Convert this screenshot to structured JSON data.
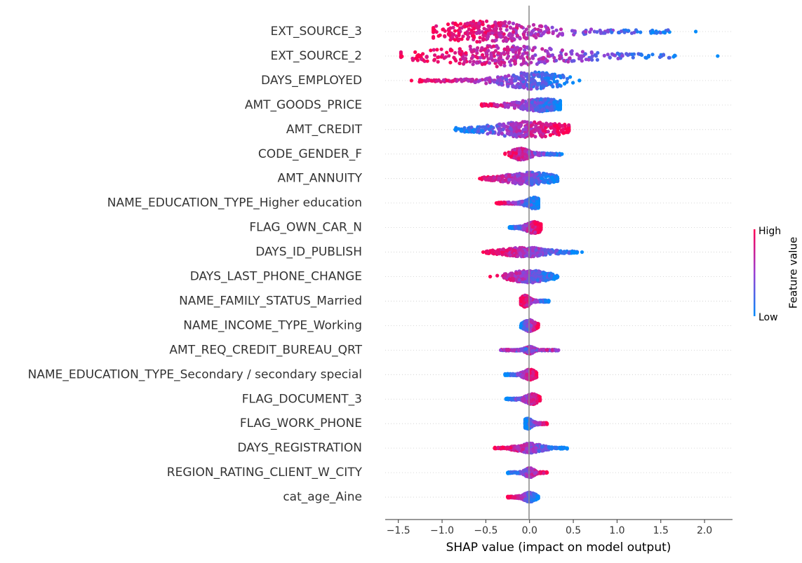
{
  "chart_data": {
    "type": "scatter",
    "subtype": "shap-beeswarm",
    "xlabel": "SHAP value (impact on model output)",
    "xlim": [
      -1.65,
      2.32
    ],
    "xticks": [
      -1.5,
      -1.0,
      -0.5,
      0.0,
      0.5,
      1.0,
      1.5,
      2.0
    ],
    "xtick_labels": [
      "−1.5",
      "−1.0",
      "−0.5",
      "0.0",
      "0.5",
      "1.0",
      "1.5",
      "2.0"
    ],
    "zero_line": 0.0,
    "grid": false,
    "colorbar": {
      "label": "Feature value",
      "high_label": "High",
      "low_label": "Low",
      "colors": [
        "#008bfb",
        "#ff0052"
      ]
    },
    "features": [
      {
        "name": "EXT_SOURCE_3",
        "min": -1.1,
        "max": 1.9,
        "peak": -0.5,
        "spread": 0.35,
        "bulk_min": -0.95,
        "bulk_max": 1.6,
        "width": 1.0,
        "gradient": "high_left"
      },
      {
        "name": "EXT_SOURCE_2",
        "min": -1.47,
        "max": 2.15,
        "peak": -0.35,
        "spread": 0.45,
        "bulk_min": -1.35,
        "bulk_max": 1.7,
        "width": 1.0,
        "gradient": "high_left"
      },
      {
        "name": "DAYS_EMPLOYED",
        "min": -1.35,
        "max": 0.57,
        "peak": 0.05,
        "spread": 0.2,
        "bulk_min": -1.3,
        "bulk_max": 0.35,
        "width": 0.8,
        "gradient": "high_left"
      },
      {
        "name": "AMT_GOODS_PRICE",
        "min": -0.55,
        "max": 0.35,
        "peak": 0.15,
        "spread": 0.15,
        "bulk_min": -0.55,
        "bulk_max": 0.33,
        "width": 0.6,
        "gradient": "high_left"
      },
      {
        "name": "AMT_CREDIT",
        "min": -0.85,
        "max": 0.45,
        "peak": 0.0,
        "spread": 0.25,
        "bulk_min": -0.85,
        "bulk_max": 0.45,
        "width": 0.75,
        "gradient": "low_left"
      },
      {
        "name": "CODE_GENDER_F",
        "min": -0.28,
        "max": 0.37,
        "peak": -0.1,
        "spread": 0.06,
        "bulk_min": -0.2,
        "bulk_max": 0.35,
        "width": 0.55,
        "gradient": "high_left"
      },
      {
        "name": "AMT_ANNUITY",
        "min": -0.57,
        "max": 0.32,
        "peak": 0.0,
        "spread": 0.15,
        "bulk_min": -0.55,
        "bulk_max": 0.32,
        "width": 0.6,
        "gradient": "high_left"
      },
      {
        "name": "NAME_EDUCATION_TYPE_Higher education",
        "min": -0.38,
        "max": 0.1,
        "peak": 0.05,
        "spread": 0.05,
        "bulk_min": -0.38,
        "bulk_max": 0.1,
        "width": 0.55,
        "gradient": "high_left"
      },
      {
        "name": "FLAG_OWN_CAR_N",
        "min": -0.23,
        "max": 0.13,
        "peak": 0.05,
        "spread": 0.05,
        "bulk_min": -0.23,
        "bulk_max": 0.13,
        "width": 0.55,
        "gradient": "low_left"
      },
      {
        "name": "DAYS_ID_PUBLISH",
        "min": -0.53,
        "max": 0.6,
        "peak": -0.05,
        "spread": 0.15,
        "bulk_min": -0.5,
        "bulk_max": 0.55,
        "width": 0.45,
        "gradient": "high_left"
      },
      {
        "name": "DAYS_LAST_PHONE_CHANGE",
        "min": -0.45,
        "max": 0.32,
        "peak": 0.0,
        "spread": 0.12,
        "bulk_min": -0.3,
        "bulk_max": 0.32,
        "width": 0.6,
        "gradient": "high_left"
      },
      {
        "name": "NAME_FAMILY_STATUS_Married",
        "min": -0.1,
        "max": 0.22,
        "peak": -0.05,
        "spread": 0.03,
        "bulk_min": -0.1,
        "bulk_max": 0.22,
        "width": 0.55,
        "gradient": "high_left"
      },
      {
        "name": "NAME_INCOME_TYPE_Working",
        "min": -0.1,
        "max": 0.1,
        "peak": 0.0,
        "spread": 0.04,
        "bulk_min": -0.1,
        "bulk_max": 0.1,
        "width": 0.55,
        "gradient": "low_left"
      },
      {
        "name": "AMT_REQ_CREDIT_BUREAU_QRT",
        "min": -0.33,
        "max": 0.33,
        "peak": 0.0,
        "spread": 0.03,
        "bulk_min": -0.33,
        "bulk_max": 0.33,
        "width": 0.35,
        "gradient": "mixed_left"
      },
      {
        "name": "NAME_EDUCATION_TYPE_Secondary / secondary special",
        "min": -0.28,
        "max": 0.08,
        "peak": 0.0,
        "spread": 0.04,
        "bulk_min": -0.28,
        "bulk_max": 0.08,
        "width": 0.5,
        "gradient": "low_left"
      },
      {
        "name": "FLAG_DOCUMENT_3",
        "min": -0.27,
        "max": 0.12,
        "peak": 0.03,
        "spread": 0.04,
        "bulk_min": -0.27,
        "bulk_max": 0.12,
        "width": 0.5,
        "gradient": "low_left"
      },
      {
        "name": "FLAG_WORK_PHONE",
        "min": -0.05,
        "max": 0.2,
        "peak": -0.02,
        "spread": 0.03,
        "bulk_min": -0.05,
        "bulk_max": 0.2,
        "width": 0.5,
        "gradient": "low_left"
      },
      {
        "name": "DAYS_REGISTRATION",
        "min": -0.4,
        "max": 0.43,
        "peak": 0.0,
        "spread": 0.08,
        "bulk_min": -0.4,
        "bulk_max": 0.43,
        "width": 0.45,
        "gradient": "high_left"
      },
      {
        "name": "REGION_RATING_CLIENT_W_CITY",
        "min": -0.25,
        "max": 0.2,
        "peak": 0.0,
        "spread": 0.03,
        "bulk_min": -0.25,
        "bulk_max": 0.2,
        "width": 0.45,
        "gradient": "low_left"
      },
      {
        "name": "cat_age_Aine",
        "min": -0.25,
        "max": 0.1,
        "peak": 0.0,
        "spread": 0.04,
        "bulk_min": -0.25,
        "bulk_max": 0.1,
        "width": 0.45,
        "gradient": "high_left"
      }
    ]
  }
}
